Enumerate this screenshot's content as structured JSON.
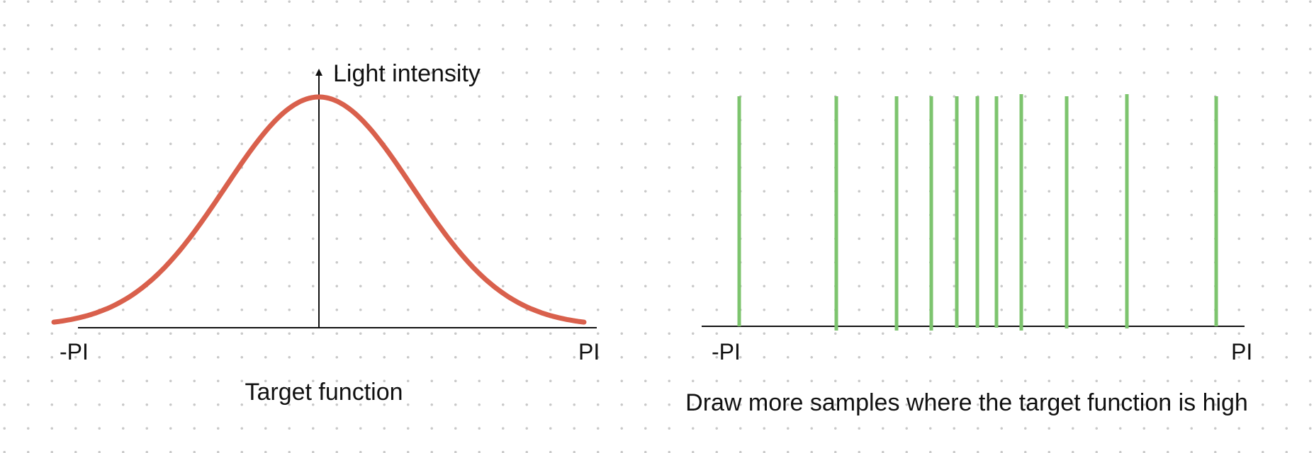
{
  "left_panel": {
    "y_axis_label": "Light intensity",
    "x_min_label": "-PI",
    "x_max_label": "PI",
    "caption": "Target function",
    "curve_color": "#d9604c"
  },
  "right_panel": {
    "x_min_label": "-PI",
    "x_max_label": "PI",
    "caption": "Draw more samples where the target function is high",
    "sample_color": "#7dc46e",
    "sample_count": 11
  },
  "axis_color": "#111111"
}
